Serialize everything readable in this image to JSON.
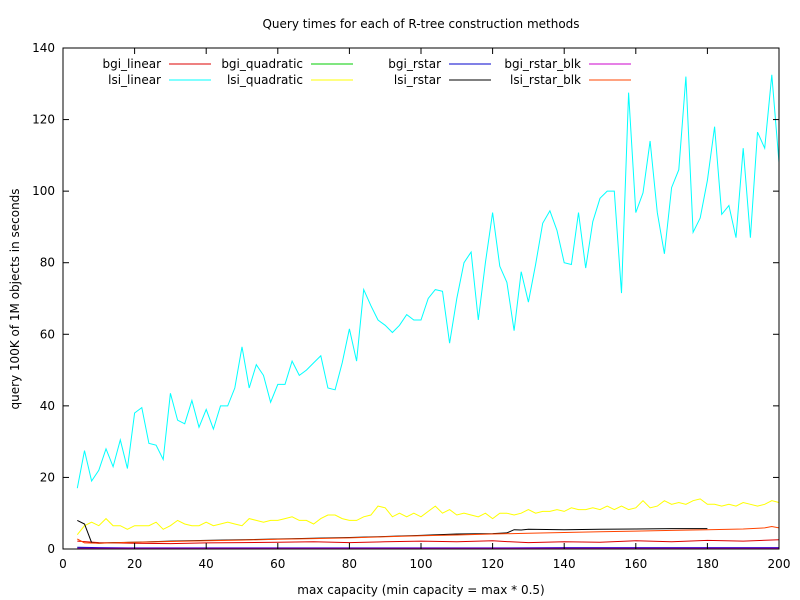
{
  "chart_data": {
    "type": "line",
    "title": "Query times for each of R-tree construction methods",
    "xlabel": "max capacity (min capacity = max * 0.5)",
    "ylabel": "query 100K of 1M objects in seconds",
    "xlim": [
      0,
      200
    ],
    "ylim": [
      0,
      140
    ],
    "xticks": [
      0,
      20,
      40,
      60,
      80,
      100,
      120,
      140,
      160,
      180,
      200
    ],
    "yticks": [
      0,
      20,
      40,
      60,
      80,
      100,
      120,
      140
    ],
    "xtick_labels": [
      "0",
      "20",
      "40",
      "60",
      "80",
      "100",
      "120",
      "140",
      "160",
      "180",
      "200"
    ],
    "ytick_labels": [
      "0",
      "20",
      "40",
      "60",
      "80",
      "100",
      "120",
      "140"
    ],
    "legend_placement": "top-left",
    "grid": false,
    "series": [
      {
        "name": "bgi_linear",
        "color": "#dd0000",
        "points": [
          [
            4,
            2.2
          ],
          [
            10,
            1.8
          ],
          [
            20,
            1.6
          ],
          [
            30,
            1.5
          ],
          [
            40,
            1.7
          ],
          [
            50,
            1.8
          ],
          [
            60,
            1.9
          ],
          [
            70,
            2.0
          ],
          [
            80,
            1.8
          ],
          [
            90,
            2.0
          ],
          [
            100,
            2.2
          ],
          [
            110,
            2.0
          ],
          [
            120,
            2.3
          ],
          [
            125,
            2.0
          ],
          [
            130,
            1.8
          ],
          [
            140,
            2.0
          ],
          [
            150,
            1.9
          ],
          [
            160,
            2.3
          ],
          [
            170,
            2.0
          ],
          [
            180,
            2.4
          ],
          [
            190,
            2.2
          ],
          [
            200,
            2.6
          ]
        ]
      },
      {
        "name": "bgi_quadratic",
        "color": "#00cc00",
        "points": [
          [
            4,
            0.3
          ],
          [
            10,
            0.2
          ],
          [
            20,
            0.2
          ],
          [
            40,
            0.2
          ],
          [
            60,
            0.2
          ],
          [
            80,
            0.2
          ],
          [
            100,
            0.2
          ],
          [
            120,
            0.2
          ],
          [
            140,
            0.2
          ],
          [
            160,
            0.2
          ],
          [
            180,
            0.2
          ],
          [
            200,
            0.2
          ]
        ]
      },
      {
        "name": "bgi_rstar",
        "color": "#0000cc",
        "points": [
          [
            4,
            0.5
          ],
          [
            10,
            0.4
          ],
          [
            20,
            0.3
          ],
          [
            40,
            0.3
          ],
          [
            60,
            0.3
          ],
          [
            80,
            0.3
          ],
          [
            100,
            0.3
          ],
          [
            120,
            0.3
          ],
          [
            140,
            0.4
          ],
          [
            160,
            0.4
          ],
          [
            180,
            0.4
          ],
          [
            200,
            0.4
          ]
        ]
      },
      {
        "name": "bgi_rstar_blk",
        "color": "#cc00cc",
        "points": [
          [
            4,
            0.2
          ],
          [
            10,
            0.2
          ],
          [
            20,
            0.2
          ],
          [
            40,
            0.2
          ],
          [
            60,
            0.2
          ],
          [
            80,
            0.2
          ],
          [
            100,
            0.2
          ],
          [
            120,
            0.2
          ],
          [
            140,
            0.2
          ],
          [
            160,
            0.2
          ],
          [
            180,
            0.2
          ],
          [
            200,
            0.2
          ]
        ]
      },
      {
        "name": "lsi_linear",
        "color": "#00ffff",
        "points": [
          [
            4,
            17
          ],
          [
            6,
            27.5
          ],
          [
            8,
            19
          ],
          [
            10,
            22
          ],
          [
            12,
            28
          ],
          [
            14,
            23
          ],
          [
            16,
            30.5
          ],
          [
            18,
            22.5
          ],
          [
            20,
            38
          ],
          [
            22,
            39.5
          ],
          [
            24,
            29.5
          ],
          [
            26,
            29
          ],
          [
            28,
            25
          ],
          [
            30,
            43.5
          ],
          [
            32,
            36
          ],
          [
            34,
            35
          ],
          [
            36,
            41.5
          ],
          [
            38,
            34
          ],
          [
            40,
            39
          ],
          [
            42,
            33.5
          ],
          [
            44,
            40
          ],
          [
            46,
            40
          ],
          [
            48,
            45
          ],
          [
            50,
            56.5
          ],
          [
            52,
            45
          ],
          [
            54,
            51.5
          ],
          [
            56,
            48.5
          ],
          [
            58,
            41
          ],
          [
            60,
            46
          ],
          [
            62,
            46
          ],
          [
            64,
            52.5
          ],
          [
            66,
            48.5
          ],
          [
            68,
            50
          ],
          [
            70,
            52
          ],
          [
            72,
            54
          ],
          [
            74,
            45
          ],
          [
            76,
            44.5
          ],
          [
            78,
            52
          ],
          [
            80,
            61.5
          ],
          [
            82,
            52.5
          ],
          [
            84,
            72.5
          ],
          [
            86,
            68
          ],
          [
            88,
            64
          ],
          [
            90,
            62.5
          ],
          [
            92,
            60.5
          ],
          [
            94,
            62.5
          ],
          [
            96,
            65.5
          ],
          [
            98,
            64
          ],
          [
            100,
            64
          ],
          [
            102,
            70
          ],
          [
            104,
            72.5
          ],
          [
            106,
            72
          ],
          [
            108,
            57.5
          ],
          [
            110,
            70
          ],
          [
            112,
            80
          ],
          [
            114,
            83
          ],
          [
            116,
            64
          ],
          [
            118,
            80
          ],
          [
            120,
            94
          ],
          [
            122,
            79
          ],
          [
            124,
            74.5
          ],
          [
            126,
            61
          ],
          [
            128,
            77.5
          ],
          [
            130,
            69
          ],
          [
            132,
            79.5
          ],
          [
            134,
            91
          ],
          [
            136,
            94.5
          ],
          [
            138,
            89
          ],
          [
            140,
            80
          ],
          [
            142,
            79.5
          ],
          [
            144,
            94
          ],
          [
            146,
            78.5
          ],
          [
            148,
            91.5
          ],
          [
            150,
            98
          ],
          [
            152,
            100
          ],
          [
            154,
            100
          ],
          [
            156,
            71.5
          ],
          [
            158,
            127.5
          ],
          [
            160,
            94
          ],
          [
            162,
            99.5
          ],
          [
            164,
            114
          ],
          [
            166,
            94
          ],
          [
            168,
            82.5
          ],
          [
            170,
            101
          ],
          [
            172,
            106
          ],
          [
            174,
            132
          ],
          [
            176,
            88.5
          ],
          [
            178,
            92.5
          ],
          [
            180,
            103
          ],
          [
            182,
            118
          ],
          [
            184,
            93.5
          ],
          [
            186,
            96
          ],
          [
            188,
            87
          ],
          [
            190,
            112
          ],
          [
            192,
            87
          ],
          [
            194,
            116.5
          ],
          [
            196,
            112
          ],
          [
            198,
            132.5
          ],
          [
            200,
            108
          ]
        ]
      },
      {
        "name": "lsi_quadratic",
        "color": "#ffff00",
        "points": [
          [
            4,
            4
          ],
          [
            6,
            6.5
          ],
          [
            8,
            7.5
          ],
          [
            10,
            6.5
          ],
          [
            12,
            8.5
          ],
          [
            14,
            6.5
          ],
          [
            16,
            6.5
          ],
          [
            18,
            5.5
          ],
          [
            20,
            6.5
          ],
          [
            22,
            6.5
          ],
          [
            24,
            6.5
          ],
          [
            26,
            7.5
          ],
          [
            28,
            5.5
          ],
          [
            30,
            6.5
          ],
          [
            32,
            8
          ],
          [
            34,
            7
          ],
          [
            36,
            6.5
          ],
          [
            38,
            6.5
          ],
          [
            40,
            7.5
          ],
          [
            42,
            6.5
          ],
          [
            44,
            7
          ],
          [
            46,
            7.5
          ],
          [
            48,
            7
          ],
          [
            50,
            6.5
          ],
          [
            52,
            8.5
          ],
          [
            54,
            8
          ],
          [
            56,
            7.5
          ],
          [
            58,
            8
          ],
          [
            60,
            8
          ],
          [
            62,
            8.5
          ],
          [
            64,
            9
          ],
          [
            66,
            8
          ],
          [
            68,
            8
          ],
          [
            70,
            7
          ],
          [
            72,
            8.5
          ],
          [
            74,
            9.5
          ],
          [
            76,
            9.5
          ],
          [
            78,
            8.5
          ],
          [
            80,
            8
          ],
          [
            82,
            8
          ],
          [
            84,
            9
          ],
          [
            86,
            9.5
          ],
          [
            88,
            12
          ],
          [
            90,
            11.5
          ],
          [
            92,
            9
          ],
          [
            94,
            10
          ],
          [
            96,
            9
          ],
          [
            98,
            10
          ],
          [
            100,
            9
          ],
          [
            102,
            10.5
          ],
          [
            104,
            12
          ],
          [
            106,
            10
          ],
          [
            108,
            11
          ],
          [
            110,
            9.5
          ],
          [
            112,
            10
          ],
          [
            114,
            9.5
          ],
          [
            116,
            9
          ],
          [
            118,
            10
          ],
          [
            120,
            8.5
          ],
          [
            122,
            10
          ],
          [
            124,
            10
          ],
          [
            126,
            9.5
          ],
          [
            128,
            10
          ],
          [
            130,
            11
          ],
          [
            132,
            10
          ],
          [
            134,
            10.5
          ],
          [
            136,
            10.5
          ],
          [
            138,
            11
          ],
          [
            140,
            10.5
          ],
          [
            142,
            11.5
          ],
          [
            144,
            11
          ],
          [
            146,
            11
          ],
          [
            148,
            11.5
          ],
          [
            150,
            11
          ],
          [
            152,
            12
          ],
          [
            154,
            11
          ],
          [
            156,
            12
          ],
          [
            158,
            11
          ],
          [
            160,
            11.5
          ],
          [
            162,
            13.5
          ],
          [
            164,
            11.5
          ],
          [
            166,
            12
          ],
          [
            168,
            13.5
          ],
          [
            170,
            12.5
          ],
          [
            172,
            13
          ],
          [
            174,
            12.5
          ],
          [
            176,
            13.5
          ],
          [
            178,
            14
          ],
          [
            180,
            12.5
          ],
          [
            182,
            12.5
          ],
          [
            184,
            12
          ],
          [
            186,
            12.5
          ],
          [
            188,
            12
          ],
          [
            190,
            13
          ],
          [
            192,
            12.5
          ],
          [
            194,
            12
          ],
          [
            196,
            12.5
          ],
          [
            198,
            13.5
          ],
          [
            200,
            13
          ]
        ]
      },
      {
        "name": "lsi_rstar",
        "color": "#000000",
        "points": [
          [
            4,
            8
          ],
          [
            6,
            7
          ],
          [
            8,
            1.8
          ],
          [
            10,
            1.6
          ],
          [
            14,
            1.8
          ],
          [
            20,
            1.9
          ],
          [
            30,
            2.2
          ],
          [
            40,
            2.4
          ],
          [
            50,
            2.6
          ],
          [
            60,
            2.8
          ],
          [
            70,
            3.0
          ],
          [
            80,
            3.2
          ],
          [
            90,
            3.5
          ],
          [
            100,
            3.8
          ],
          [
            110,
            4.2
          ],
          [
            120,
            4.3
          ],
          [
            124,
            4.5
          ],
          [
            126,
            5.4
          ],
          [
            128,
            5.3
          ],
          [
            130,
            5.5
          ],
          [
            140,
            5.4
          ],
          [
            150,
            5.5
          ],
          [
            160,
            5.6
          ],
          [
            170,
            5.7
          ],
          [
            180,
            5.7
          ]
        ]
      },
      {
        "name": "lsi_rstar_blk",
        "color": "#ff4400",
        "points": [
          [
            4,
            2.8
          ],
          [
            6,
            1.7
          ],
          [
            10,
            1.6
          ],
          [
            20,
            1.9
          ],
          [
            30,
            2.1
          ],
          [
            40,
            2.3
          ],
          [
            50,
            2.5
          ],
          [
            60,
            2.7
          ],
          [
            70,
            2.9
          ],
          [
            80,
            3.1
          ],
          [
            90,
            3.4
          ],
          [
            100,
            3.7
          ],
          [
            110,
            3.9
          ],
          [
            120,
            4.2
          ],
          [
            130,
            4.4
          ],
          [
            140,
            4.6
          ],
          [
            150,
            4.8
          ],
          [
            160,
            5.0
          ],
          [
            170,
            5.2
          ],
          [
            180,
            5.4
          ],
          [
            190,
            5.6
          ],
          [
            196,
            5.9
          ],
          [
            198,
            6.3
          ],
          [
            200,
            5.9
          ]
        ]
      }
    ]
  }
}
